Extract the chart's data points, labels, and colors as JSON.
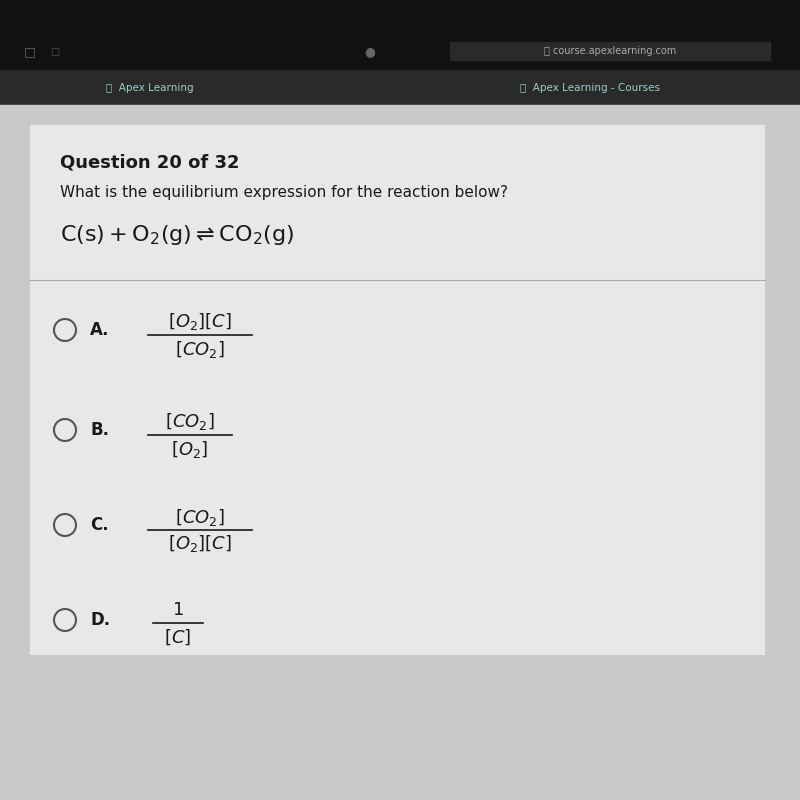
{
  "bg_very_top": "#000000",
  "bg_browser": "#1a1a1a",
  "bg_tab": "#2a2a2a",
  "bg_page": "#c8c8c8",
  "bg_content": "#e2e2e2",
  "text_dark": "#1a1a1a",
  "text_grey": "#888888",
  "text_light": "#bbbbbb",
  "divider_color": "#aaaaaa",
  "circle_color": "#555555",
  "question_label": "Question 20 of 32",
  "question_text": "What is the equilibrium expression for the reaction below?",
  "url_text": "course.apexlearning.com",
  "tab_left": "Apex Learning",
  "tab_right": "Apex Learning - Courses"
}
